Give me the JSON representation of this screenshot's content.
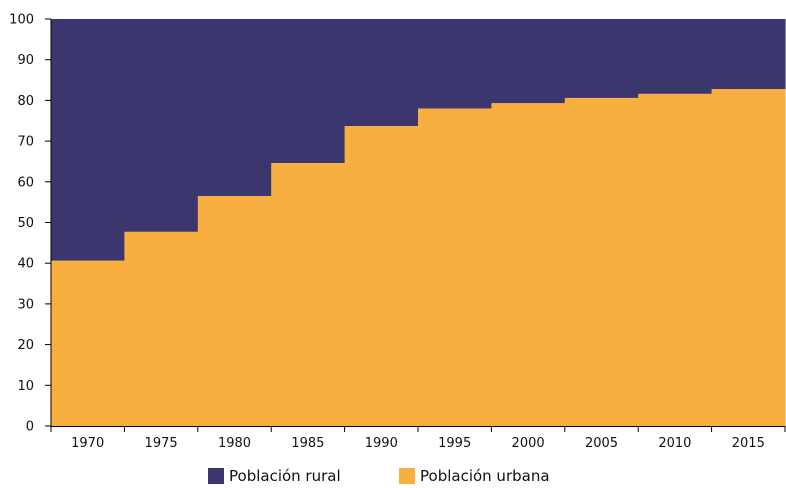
{
  "chart_data": {
    "type": "area",
    "categories": [
      "1970",
      "1975",
      "1980",
      "1985",
      "1990",
      "1995",
      "2000",
      "2005",
      "2010",
      "2015"
    ],
    "series": [
      {
        "name": "Población rural",
        "values": [
          59.4,
          52.3,
          43.5,
          35.4,
          26.3,
          22.0,
          20.7,
          19.4,
          18.4,
          17.2
        ],
        "color": "#3b366e"
      },
      {
        "name": "Población urbana",
        "values": [
          40.6,
          47.7,
          56.5,
          64.6,
          73.7,
          78.0,
          79.3,
          80.6,
          81.6,
          82.8
        ],
        "color": "#f9ae40"
      }
    ],
    "stacked": true,
    "step": true,
    "ylim": [
      0,
      100
    ],
    "yticks": [
      "0",
      "10",
      "20",
      "30",
      "40",
      "50",
      "60",
      "70",
      "80",
      "90",
      "100"
    ],
    "xlabel": "",
    "ylabel": "",
    "title": "",
    "legend_position": "bottom-center",
    "grid": false
  },
  "legend": {
    "rural_label": "Población rural",
    "urban_label": "Población urbana",
    "rural_color": "#3b366e",
    "urban_color": "#f9ae40"
  }
}
